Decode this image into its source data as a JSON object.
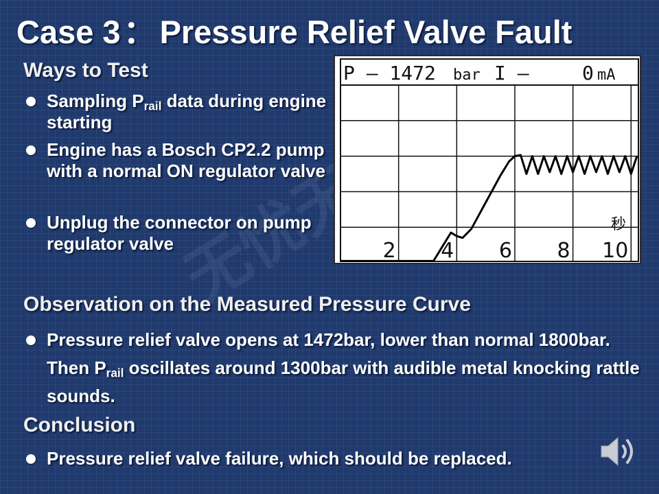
{
  "slide": {
    "title_case": "Case 3",
    "title_sep": "：",
    "title_main": "Pressure Relief Valve Fault",
    "watermark": "无忧无水印",
    "sections": {
      "test_heading": "Ways to Test",
      "observation_heading": "Observation on the Measured Pressure Curve",
      "conclusion_heading": "Conclusion"
    },
    "test_bullets": [
      {
        "pre": "Sampling  P",
        "sub": "rail",
        "post": " data during engine starting"
      },
      {
        "text": "Engine has a Bosch CP2.2 pump with a normal ON regulator valve"
      },
      {
        "text": "Unplug the connector on pump regulator valve"
      }
    ],
    "observation_bullet": {
      "pre": "Pressure relief valve opens at 1472bar, lower than normal 1800bar. Then  P",
      "sub": "rail",
      "post": " oscillates around 1300bar with audible metal knocking rattle sounds."
    },
    "conclusion_bullet": "Pressure relief valve failure, which should be replaced."
  },
  "scope": {
    "header": {
      "pressure_label": "P — 1472",
      "pressure_unit": "bar",
      "current_label": "I —",
      "current_value": "0",
      "current_unit": "mA"
    },
    "unit_label": "秒",
    "x_ticks": [
      "2",
      "4",
      "6",
      "8",
      "10"
    ]
  },
  "chart_data": {
    "type": "line",
    "title": "",
    "xlabel": "秒",
    "ylabel": "",
    "x_ticks": [
      2,
      4,
      6,
      8,
      10
    ],
    "xlim": [
      0,
      10.3
    ],
    "ylim": [
      0,
      5
    ],
    "grid": true,
    "series": [
      {
        "x": [
          0.0,
          1.5,
          2.0,
          2.5,
          3.0,
          3.2,
          3.5,
          3.8,
          4.0,
          4.2,
          4.5,
          5.0,
          5.5,
          5.8,
          6.0,
          6.2,
          6.4,
          6.6,
          6.8,
          7.0,
          7.2,
          7.4,
          7.6,
          7.8,
          8.0,
          8.2,
          8.4,
          8.6,
          8.8,
          9.0,
          9.2,
          9.4,
          9.6,
          9.8,
          10.0,
          10.2
        ],
        "y": [
          0.05,
          0.05,
          0.05,
          0.05,
          0.05,
          0.05,
          0.45,
          0.85,
          0.75,
          0.7,
          0.95,
          1.7,
          2.45,
          2.85,
          3.0,
          3.03,
          2.5,
          3.0,
          2.5,
          3.0,
          2.55,
          3.0,
          2.5,
          3.0,
          2.55,
          3.0,
          2.5,
          3.0,
          2.55,
          3.0,
          2.5,
          3.0,
          2.55,
          3.0,
          2.5,
          3.0
        ]
      }
    ]
  },
  "colors": {
    "background": "#203a6e",
    "text": "#ffffff",
    "scope_bg": "#ffffff",
    "scope_grid": "#111111"
  },
  "icons": {
    "speaker": "speaker-icon"
  }
}
